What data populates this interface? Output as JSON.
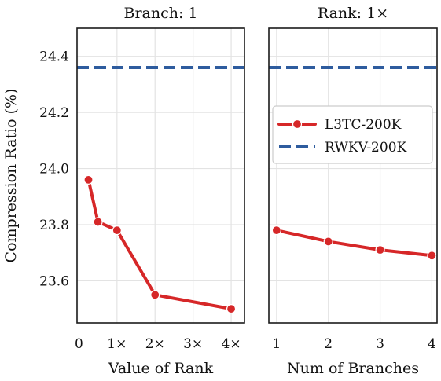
{
  "colors": {
    "l3tc": "#d62728",
    "rwkv": "#2e5c9e",
    "grid": "#e3e3e3",
    "axis": "#1a1a1a"
  },
  "chart_data": [
    {
      "type": "line",
      "title": "Branch: 1",
      "xlabel": "Value of Rank",
      "ylabel": "Compression Ratio (%)",
      "xlim": [
        -0.05,
        4.35
      ],
      "ylim": [
        23.45,
        24.5
      ],
      "x_ticks": [
        0,
        1,
        2,
        3,
        4
      ],
      "x_tick_labels": [
        "0",
        "1×",
        "2×",
        "3×",
        "4×"
      ],
      "y_ticks": [
        23.6,
        23.8,
        24.0,
        24.2,
        24.4
      ],
      "y_tick_labels": [
        "23.6",
        "23.8",
        "24.0",
        "24.2",
        "24.4"
      ],
      "grid": true,
      "series": [
        {
          "name": "L3TC-200K",
          "style": "solid-marker",
          "x": [
            0.25,
            0.5,
            1,
            2,
            4
          ],
          "values": [
            23.96,
            23.81,
            23.78,
            23.55,
            23.5
          ]
        },
        {
          "name": "RWKV-200K",
          "style": "dashed",
          "x": [
            -0.05,
            4.35
          ],
          "values": [
            24.36,
            24.36
          ]
        }
      ]
    },
    {
      "type": "line",
      "title": "Rank: 1×",
      "xlabel": "Num of Branches",
      "ylabel": "",
      "xlim": [
        0.85,
        4.1
      ],
      "ylim": [
        23.45,
        24.5
      ],
      "x_ticks": [
        1,
        2,
        3,
        4
      ],
      "x_tick_labels": [
        "1",
        "2",
        "3",
        "4"
      ],
      "y_ticks": [
        23.6,
        23.8,
        24.0,
        24.2,
        24.4
      ],
      "grid": true,
      "legend": "center-right",
      "series": [
        {
          "name": "L3TC-200K",
          "style": "solid-marker",
          "x": [
            1,
            2,
            3,
            4
          ],
          "values": [
            23.78,
            23.74,
            23.71,
            23.69
          ]
        },
        {
          "name": "RWKV-200K",
          "style": "dashed",
          "x": [
            0.85,
            4.1
          ],
          "values": [
            24.36,
            24.36
          ]
        }
      ]
    }
  ]
}
